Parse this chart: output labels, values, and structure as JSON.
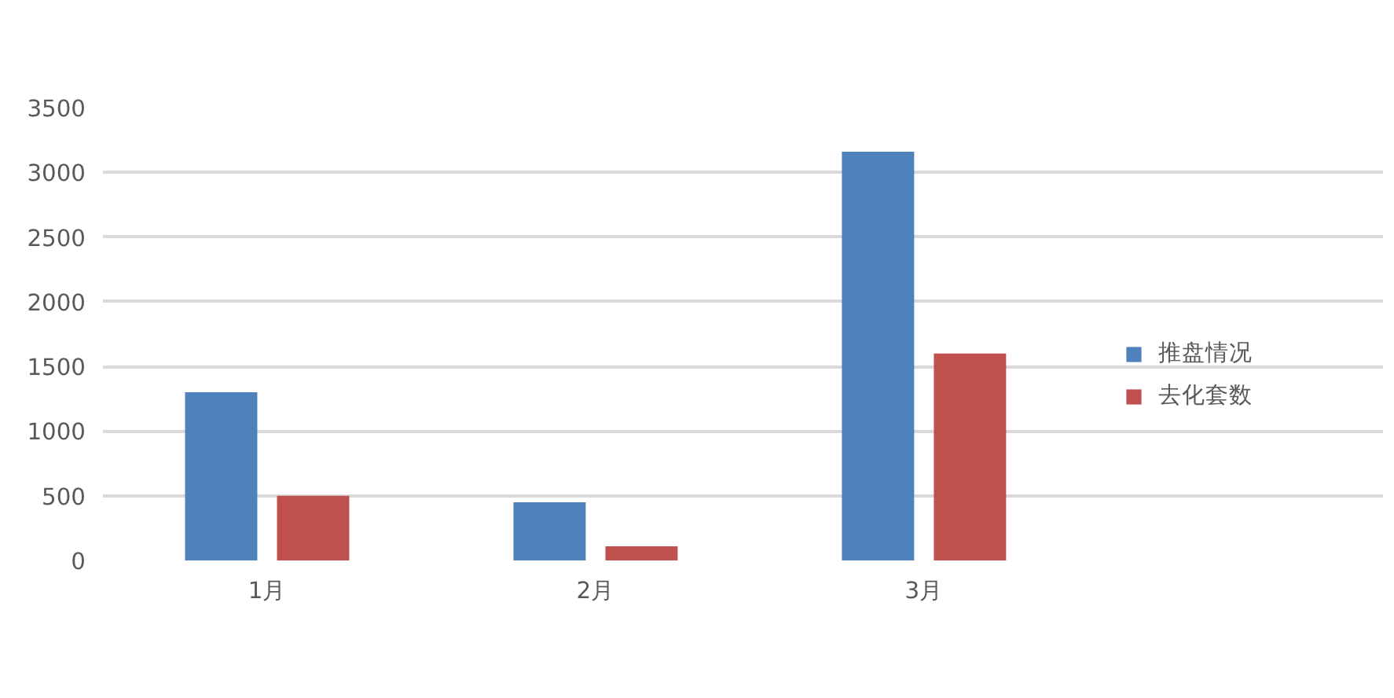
{
  "chart_data": {
    "type": "bar",
    "categories": [
      "1月",
      "2月",
      "3月"
    ],
    "series": [
      {
        "name": "推盘情况",
        "color": "#4f81bd",
        "values": [
          1300,
          450,
          3160
        ]
      },
      {
        "name": "去化套数",
        "color": "#c0504d",
        "values": [
          500,
          110,
          1600
        ]
      }
    ],
    "ylim": [
      0,
      3500
    ],
    "yticks": [
      0,
      500,
      1000,
      1500,
      2000,
      2500,
      3000,
      3500
    ],
    "grid": "y",
    "legend": "right"
  }
}
